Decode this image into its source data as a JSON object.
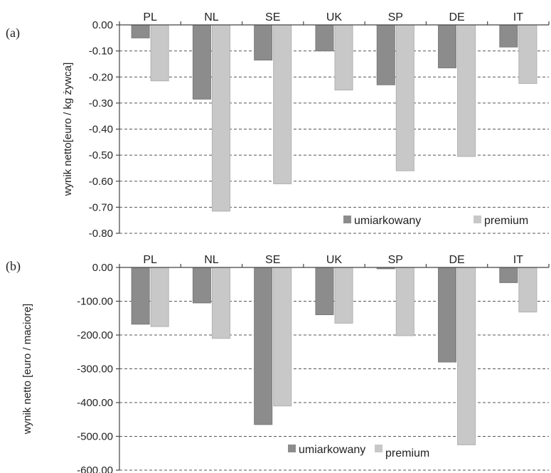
{
  "chart_data": [
    {
      "panel_label": "(a)",
      "type": "bar",
      "categories": [
        "PL",
        "NL",
        "SE",
        "UK",
        "SP",
        "DE",
        "IT"
      ],
      "series": [
        {
          "name": "umiarkowany",
          "color": "#8c8c8c",
          "values": [
            -0.05,
            -0.285,
            -0.135,
            -0.1,
            -0.23,
            -0.165,
            -0.085
          ]
        },
        {
          "name": "premium",
          "color": "#c8c8c8",
          "values": [
            -0.215,
            -0.715,
            -0.61,
            -0.25,
            -0.56,
            -0.505,
            -0.225
          ]
        }
      ],
      "ylabel": "wynik netto[euro / kg żywca]",
      "ylim": [
        -0.8,
        0.0
      ],
      "yticks": [
        "0.00",
        "-0.10",
        "-0.20",
        "-0.30",
        "-0.40",
        "-0.50",
        "-0.60",
        "-0.70",
        "-0.80"
      ],
      "ytick_values": [
        0,
        -0.1,
        -0.2,
        -0.3,
        -0.4,
        -0.5,
        -0.6,
        -0.7,
        -0.8
      ],
      "grid": true,
      "legend_position": "bottom-right"
    },
    {
      "panel_label": "(b)",
      "type": "bar",
      "categories": [
        "PL",
        "NL",
        "SE",
        "UK",
        "SP",
        "DE",
        "IT"
      ],
      "series": [
        {
          "name": "umiarkowany",
          "color": "#8c8c8c",
          "values": [
            -168,
            -105,
            -465,
            -140,
            -4,
            -280,
            -45
          ]
        },
        {
          "name": "premium",
          "color": "#c8c8c8",
          "values": [
            -175,
            -210,
            -410,
            -165,
            -202,
            -525,
            -132
          ]
        }
      ],
      "ylabel": "wynik netto [euro /  maciorę]",
      "ylim": [
        -600,
        0
      ],
      "yticks": [
        "0.00",
        "-100.00",
        "-200.00",
        "-300.00",
        "-400.00",
        "-500.00",
        "-600.00"
      ],
      "ytick_values": [
        0,
        -100,
        -200,
        -300,
        -400,
        -500,
        -600
      ],
      "grid": true,
      "legend_position": "bottom-center"
    }
  ]
}
